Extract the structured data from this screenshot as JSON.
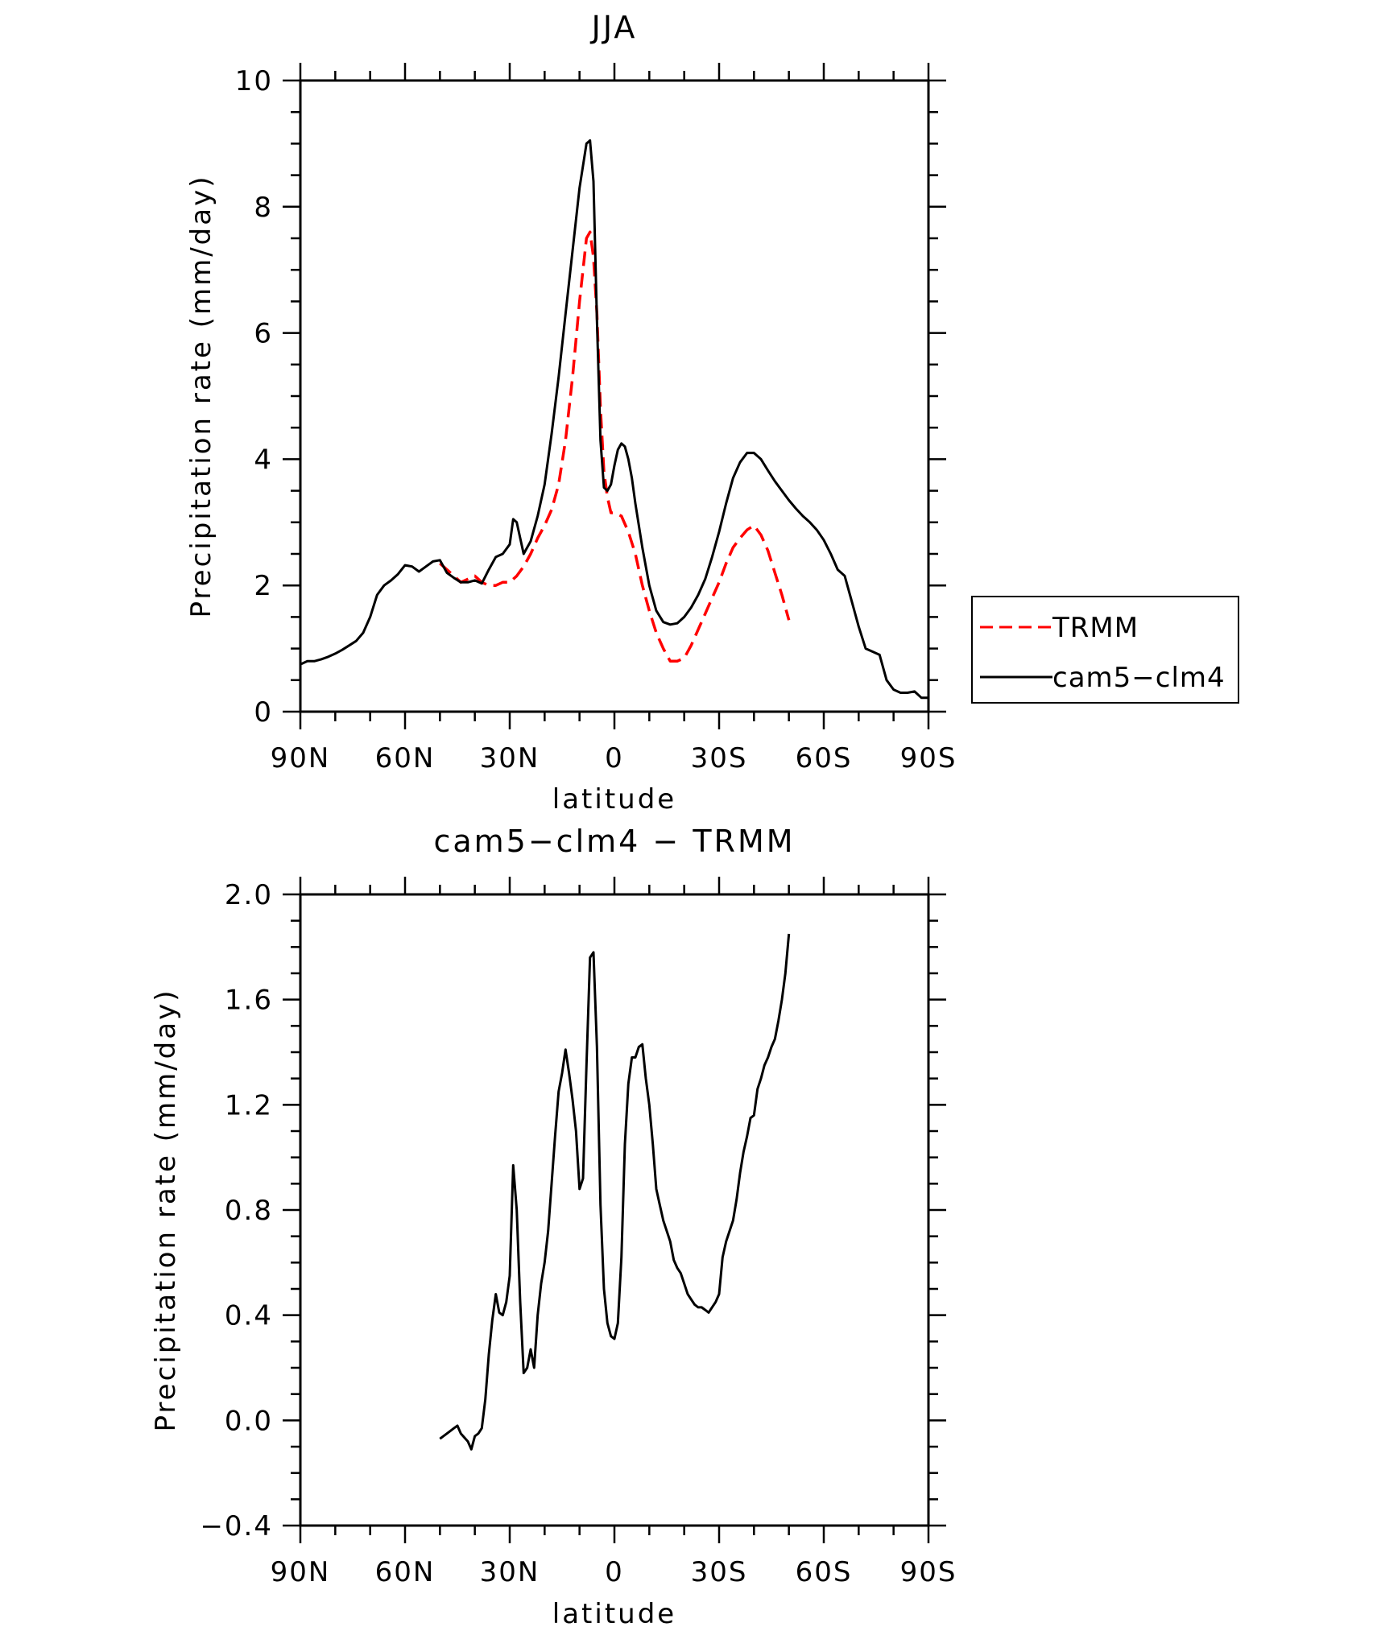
{
  "chart_data": [
    {
      "type": "line",
      "title": "JJA",
      "xlabel": "latitude",
      "ylabel": "Precipitation rate (mm/day)",
      "xlim": [
        90,
        -90
      ],
      "ylim": [
        0,
        10
      ],
      "x_ticks": [
        90,
        60,
        30,
        0,
        -30,
        -60,
        -90
      ],
      "x_tick_labels": [
        "90N",
        "60N",
        "30N",
        "0",
        "30S",
        "60S",
        "90S"
      ],
      "y_ticks": [
        0,
        2,
        4,
        6,
        8,
        10
      ],
      "y_tick_labels": [
        "0",
        "2",
        "4",
        "6",
        "8",
        "10"
      ],
      "legend": {
        "position": "right",
        "entries": [
          "TRMM",
          "cam5-clm4"
        ]
      },
      "series": [
        {
          "name": "TRMM",
          "color": "#ff0000",
          "dash": "dashed",
          "x": [
            50,
            48,
            46,
            44,
            42,
            40,
            38,
            36,
            34,
            32,
            30,
            28,
            26,
            24,
            22,
            20,
            18,
            16,
            14,
            12,
            10,
            8,
            7,
            6,
            5,
            4,
            3,
            2,
            1,
            0,
            -2,
            -4,
            -6,
            -8,
            -10,
            -12,
            -14,
            -16,
            -18,
            -20,
            -22,
            -24,
            -26,
            -28,
            -30,
            -32,
            -34,
            -36,
            -38,
            -40,
            -42,
            -44,
            -46,
            -48,
            -50
          ],
          "y": [
            2.35,
            2.25,
            2.15,
            2.05,
            2.1,
            2.15,
            2.05,
            2.0,
            2.0,
            2.05,
            2.05,
            2.15,
            2.3,
            2.5,
            2.75,
            2.95,
            3.2,
            3.6,
            4.3,
            5.3,
            6.5,
            7.5,
            7.6,
            7.2,
            6.3,
            4.8,
            3.8,
            3.4,
            3.15,
            3.15,
            3.1,
            2.85,
            2.5,
            2.0,
            1.6,
            1.25,
            1.0,
            0.8,
            0.8,
            0.85,
            1.05,
            1.3,
            1.55,
            1.8,
            2.05,
            2.35,
            2.6,
            2.75,
            2.88,
            2.95,
            2.8,
            2.55,
            2.2,
            1.85,
            1.45
          ]
        },
        {
          "name": "cam5-clm4",
          "color": "#000000",
          "dash": "solid",
          "x": [
            90,
            88,
            86,
            84,
            82,
            80,
            78,
            76,
            74,
            72,
            70,
            68,
            66,
            64,
            62,
            60,
            58,
            56,
            54,
            52,
            50,
            48,
            46,
            44,
            42,
            40,
            38,
            36,
            34,
            32,
            30,
            29,
            28,
            27,
            26,
            24,
            22,
            20,
            18,
            16,
            14,
            12,
            10,
            8,
            7,
            6,
            5,
            4,
            3,
            2,
            1,
            0,
            -1,
            -2,
            -3,
            -4,
            -5,
            -6,
            -8,
            -10,
            -12,
            -14,
            -16,
            -18,
            -20,
            -22,
            -24,
            -26,
            -28,
            -30,
            -32,
            -34,
            -36,
            -38,
            -40,
            -42,
            -44,
            -46,
            -48,
            -50,
            -52,
            -54,
            -56,
            -58,
            -60,
            -62,
            -64,
            -66,
            -68,
            -70,
            -72,
            -74,
            -76,
            -78,
            -80,
            -82,
            -84,
            -86,
            -88,
            -90
          ],
          "y": [
            0.75,
            0.8,
            0.8,
            0.83,
            0.87,
            0.92,
            0.98,
            1.05,
            1.12,
            1.25,
            1.5,
            1.85,
            2.0,
            2.08,
            2.18,
            2.32,
            2.3,
            2.22,
            2.3,
            2.38,
            2.4,
            2.2,
            2.12,
            2.05,
            2.05,
            2.08,
            2.03,
            2.25,
            2.45,
            2.5,
            2.65,
            3.05,
            3.0,
            2.75,
            2.5,
            2.7,
            3.1,
            3.6,
            4.4,
            5.3,
            6.3,
            7.3,
            8.3,
            9.0,
            9.05,
            8.4,
            6.2,
            4.3,
            3.55,
            3.5,
            3.6,
            3.9,
            4.15,
            4.25,
            4.2,
            4.0,
            3.7,
            3.3,
            2.6,
            2.0,
            1.6,
            1.42,
            1.38,
            1.4,
            1.5,
            1.65,
            1.85,
            2.1,
            2.45,
            2.85,
            3.3,
            3.7,
            3.95,
            4.1,
            4.1,
            4.0,
            3.82,
            3.65,
            3.5,
            3.35,
            3.22,
            3.1,
            3.0,
            2.88,
            2.72,
            2.5,
            2.25,
            2.15,
            1.75,
            1.35,
            1.0,
            0.95,
            0.9,
            0.5,
            0.35,
            0.3,
            0.3,
            0.32,
            0.22,
            0.22
          ]
        }
      ]
    },
    {
      "type": "line",
      "title": "cam5-clm4 - TRMM",
      "xlabel": "latitude",
      "ylabel": "Precipitation rate (mm/day)",
      "xlim": [
        90,
        -90
      ],
      "ylim": [
        -0.4,
        2.0
      ],
      "x_ticks": [
        90,
        60,
        30,
        0,
        -30,
        -60,
        -90
      ],
      "x_tick_labels": [
        "90N",
        "60N",
        "30N",
        "0",
        "30S",
        "60S",
        "90S"
      ],
      "y_ticks": [
        -0.4,
        0.0,
        0.4,
        0.8,
        1.2,
        1.6,
        2.0
      ],
      "y_tick_labels": [
        "-0.4",
        "0.0",
        "0.4",
        "0.8",
        "1.2",
        "1.6",
        "2.0"
      ],
      "series": [
        {
          "color": "#000000",
          "dash": "solid",
          "x": [
            50,
            48,
            46,
            45,
            44,
            42,
            41,
            40,
            39,
            38,
            37,
            36,
            35,
            34,
            33,
            32,
            31,
            30,
            29,
            28,
            27,
            26,
            25,
            24,
            23,
            22,
            21,
            20,
            19,
            18,
            17,
            16,
            15,
            14,
            13,
            12,
            11,
            10,
            9,
            8,
            7,
            6,
            5,
            4,
            3,
            2,
            1,
            0,
            -1,
            -2,
            -3,
            -4,
            -5,
            -6,
            -7,
            -8,
            -9,
            -10,
            -11,
            -12,
            -13,
            -14,
            -15,
            -16,
            -17,
            -18,
            -19,
            -20,
            -21,
            -22,
            -23,
            -24,
            -25,
            -26,
            -27,
            -28,
            -29,
            -30,
            -31,
            -32,
            -33,
            -34,
            -35,
            -36,
            -37,
            -38,
            -39,
            -40,
            -41,
            -42,
            -43,
            -44,
            -45,
            -46,
            -47,
            -48,
            -49,
            -50
          ],
          "y": [
            -0.07,
            -0.05,
            -0.03,
            -0.02,
            -0.05,
            -0.08,
            -0.11,
            -0.06,
            -0.05,
            -0.03,
            0.08,
            0.25,
            0.38,
            0.48,
            0.41,
            0.4,
            0.45,
            0.55,
            0.97,
            0.8,
            0.45,
            0.18,
            0.2,
            0.27,
            0.2,
            0.4,
            0.52,
            0.6,
            0.72,
            0.9,
            1.08,
            1.25,
            1.32,
            1.41,
            1.32,
            1.22,
            1.1,
            0.88,
            0.92,
            1.35,
            1.76,
            1.78,
            1.42,
            0.82,
            0.5,
            0.37,
            0.32,
            0.31,
            0.37,
            0.62,
            1.05,
            1.28,
            1.38,
            1.38,
            1.42,
            1.43,
            1.3,
            1.2,
            1.05,
            0.88,
            0.82,
            0.76,
            0.72,
            0.68,
            0.61,
            0.58,
            0.56,
            0.52,
            0.48,
            0.46,
            0.44,
            0.43,
            0.43,
            0.42,
            0.41,
            0.43,
            0.45,
            0.48,
            0.62,
            0.68,
            0.72,
            0.76,
            0.84,
            0.94,
            1.02,
            1.08,
            1.15,
            1.16,
            1.26,
            1.3,
            1.35,
            1.38,
            1.42,
            1.45,
            1.52,
            1.6,
            1.7,
            1.85
          ]
        }
      ]
    }
  ]
}
